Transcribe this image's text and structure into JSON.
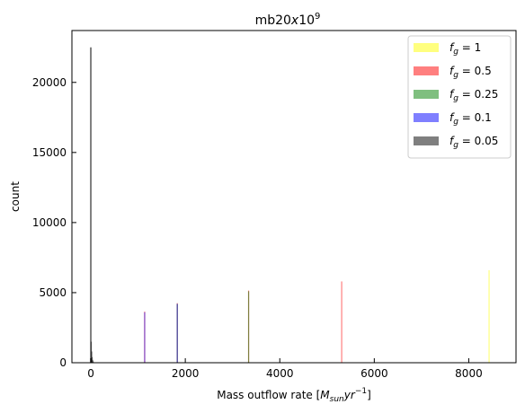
{
  "chart_data": {
    "type": "bar",
    "title": "mb20x10^9",
    "title_parts": {
      "base": "mb20",
      "italic": "x",
      "num": "10",
      "exp": "9"
    },
    "xlabel": "Mass outflow rate [M_sun yr^-1]",
    "xlabel_parts": {
      "prefix": "Mass outflow rate [",
      "m": "M",
      "sub": "sun",
      "yr": "yr",
      "exp": "−1",
      "suffix": "]"
    },
    "ylabel": "count",
    "xlim": [
      -400,
      9000
    ],
    "ylim": [
      0,
      23700
    ],
    "x_ticks": [
      0,
      2000,
      4000,
      6000,
      8000
    ],
    "x_tick_labels": [
      "0",
      "2000",
      "4000",
      "6000",
      "8000"
    ],
    "y_ticks": [
      0,
      5000,
      10000,
      15000,
      20000
    ],
    "y_tick_labels": [
      "0",
      "5000",
      "10000",
      "15000",
      "20000"
    ],
    "grid": false,
    "legend_position": "top-right",
    "legend_label_prefix": "f",
    "legend_label_sub": "g",
    "series": [
      {
        "name": "1",
        "color": "#ffff00",
        "alpha": 0.5,
        "bars": [
          {
            "x": 8430,
            "count": 6600
          }
        ]
      },
      {
        "name": "0.5",
        "color": "#ff0000",
        "alpha": 0.5,
        "bars": [
          {
            "x": 5310,
            "count": 5800
          },
          {
            "x": 3340,
            "count": 5150
          },
          {
            "x": 1830,
            "count": 4250
          },
          {
            "x": 1140,
            "count": 3650
          }
        ]
      },
      {
        "name": "0.25",
        "color": "#008000",
        "alpha": 0.5,
        "bars": [
          {
            "x": 3340,
            "count": 5100
          },
          {
            "x": 1830,
            "count": 4200
          }
        ]
      },
      {
        "name": "0.1",
        "color": "#0000ff",
        "alpha": 0.5,
        "bars": [
          {
            "x": 1830,
            "count": 4200
          },
          {
            "x": 1140,
            "count": 3600
          }
        ]
      },
      {
        "name": "0.05",
        "color": "#000000",
        "alpha": 0.5,
        "bars": [
          {
            "x": 0,
            "count": 22500
          },
          {
            "x": 10,
            "count": 1500
          },
          {
            "x": 20,
            "count": 800
          },
          {
            "x": 30,
            "count": 400
          },
          {
            "x": 40,
            "count": 200
          },
          {
            "x": 50,
            "count": 100
          }
        ]
      }
    ]
  }
}
